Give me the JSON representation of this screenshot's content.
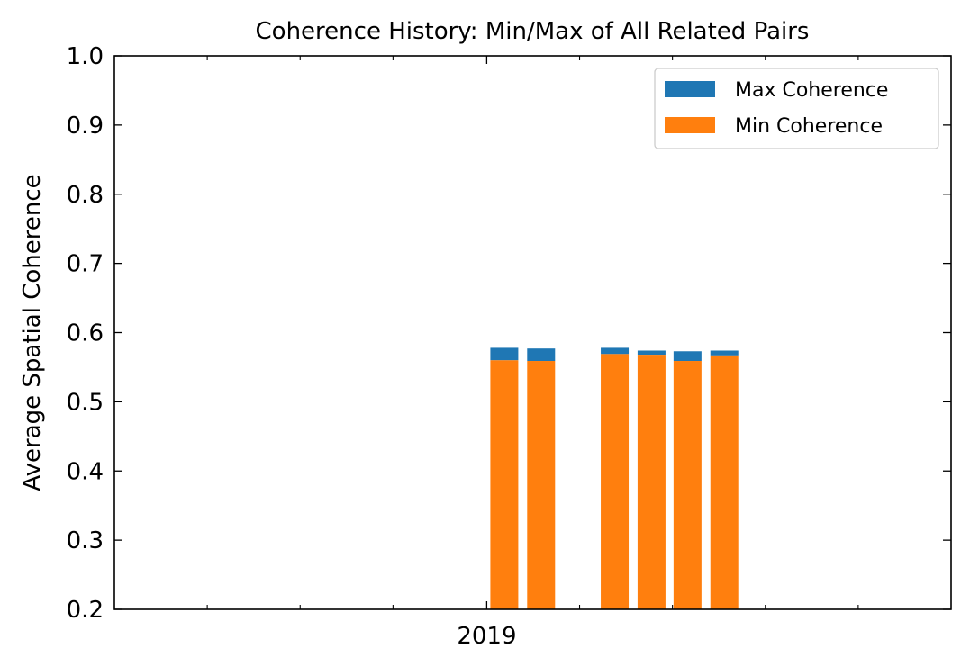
{
  "chart_data": {
    "type": "bar",
    "title": "Coherence History: Min/Max of All Related Pairs",
    "xlabel": "",
    "ylabel": "Average Spatial Coherence",
    "ylim": [
      0.2,
      1.0
    ],
    "yticks": [
      "0.2",
      "0.3",
      "0.4",
      "0.5",
      "0.6",
      "0.7",
      "0.8",
      "0.9",
      "1.0"
    ],
    "xticks": [
      {
        "label": "2019",
        "position": 0.445
      }
    ],
    "x_minor_ticks": [
      0.111,
      0.222,
      0.333,
      0.556,
      0.667,
      0.778,
      0.889
    ],
    "legend_position": "top-right",
    "bars": [
      {
        "x": 0.466,
        "min": 0.56,
        "max": 0.578
      },
      {
        "x": 0.51,
        "min": 0.559,
        "max": 0.577
      },
      {
        "x": 0.598,
        "min": 0.569,
        "max": 0.578
      },
      {
        "x": 0.642,
        "min": 0.568,
        "max": 0.574
      },
      {
        "x": 0.685,
        "min": 0.559,
        "max": 0.573
      },
      {
        "x": 0.729,
        "min": 0.567,
        "max": 0.574
      }
    ],
    "series": [
      {
        "name": "Max Coherence",
        "color": "#1f77b4"
      },
      {
        "name": "Min Coherence",
        "color": "#ff7f0e"
      }
    ],
    "grid": false
  }
}
